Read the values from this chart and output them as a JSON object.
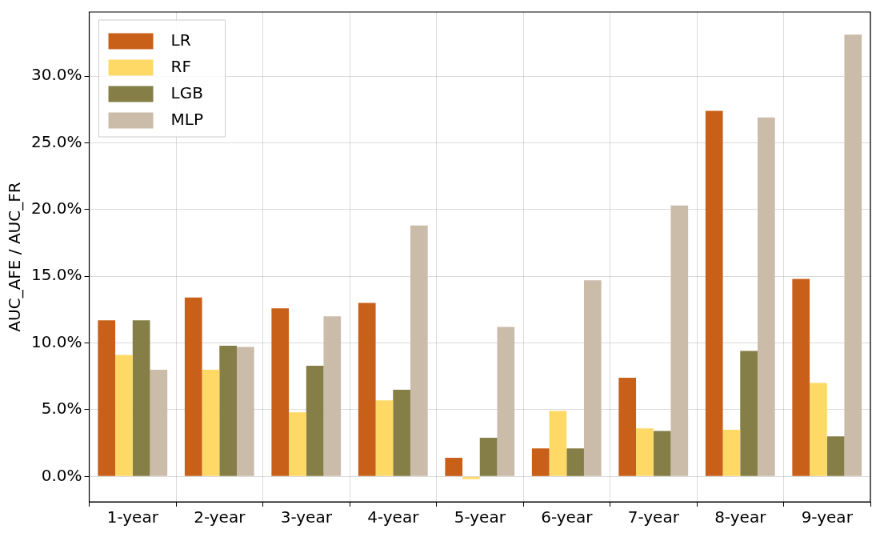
{
  "chart_data": {
    "type": "bar",
    "ylabel": "AUC_AFE / AUC_FR",
    "categories": [
      "1-year",
      "2-year",
      "3-year",
      "4-year",
      "5-year",
      "6-year",
      "7-year",
      "8-year",
      "9-year"
    ],
    "series": [
      {
        "name": "LR",
        "color": "#c8601a",
        "values": [
          11.7,
          13.4,
          12.6,
          13.0,
          1.4,
          2.1,
          7.4,
          27.4,
          14.8
        ]
      },
      {
        "name": "RF",
        "color": "#ffd966",
        "values": [
          9.1,
          8.0,
          4.8,
          5.7,
          -0.2,
          4.9,
          3.6,
          3.5,
          7.0
        ]
      },
      {
        "name": "LGB",
        "color": "#857f47",
        "values": [
          11.7,
          9.8,
          8.3,
          6.5,
          2.9,
          2.1,
          3.4,
          9.4,
          3.0
        ]
      },
      {
        "name": "MLP",
        "color": "#cbbcaa",
        "values": [
          8.0,
          9.7,
          12.0,
          18.8,
          11.2,
          14.7,
          20.3,
          26.9,
          33.1
        ]
      }
    ],
    "ylim": [
      -1.9,
      34.8
    ],
    "yticks": [
      {
        "value": 0,
        "label": "0.0%"
      },
      {
        "value": 5,
        "label": "5.0%"
      },
      {
        "value": 10,
        "label": "10.0%"
      },
      {
        "value": 15,
        "label": "15.0%"
      },
      {
        "value": 20,
        "label": "20.0%"
      },
      {
        "value": 25,
        "label": "25.0%"
      },
      {
        "value": 30,
        "label": "30.0%"
      }
    ],
    "grid": true,
    "legend": "top left"
  }
}
